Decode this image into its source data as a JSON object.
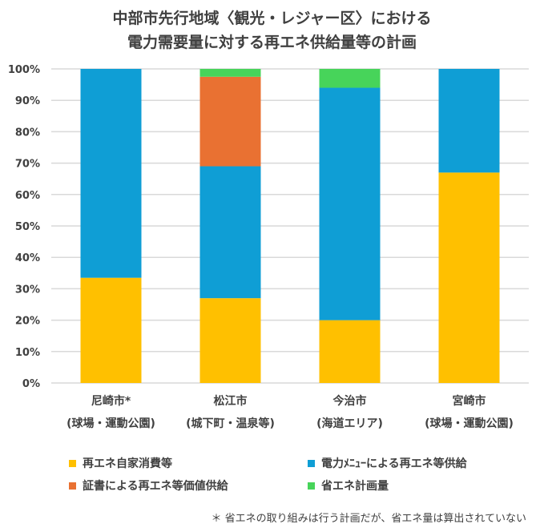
{
  "chart_data": {
    "type": "bar",
    "stacked": true,
    "title_lines": [
      "中部市先行地域〈観光・レジャー区〉における",
      "電力需要量に対する再エネ供給量等の計画"
    ],
    "categories": [
      [
        "尼崎市*",
        "(球場・運動公園)"
      ],
      [
        "松江市",
        "(城下町・温泉等)"
      ],
      [
        "今治市",
        "(海道エリア)"
      ],
      [
        "宮崎市",
        "(球場・運動公園)"
      ]
    ],
    "ylim": [
      0,
      100
    ],
    "yticks": [
      "0%",
      "10%",
      "20%",
      "30%",
      "40%",
      "50%",
      "60%",
      "70%",
      "80%",
      "90%",
      "100%"
    ],
    "grid": true,
    "legend_position": "bottom",
    "series": [
      {
        "name": "再エネ自家消費等",
        "color": "#FFC000",
        "values": [
          33.5,
          27,
          20,
          67
        ]
      },
      {
        "name": "電力ﾒﾆｭｰによる再エネ等供給",
        "color": "#0F9ED5",
        "values": [
          66.5,
          42,
          74,
          33
        ]
      },
      {
        "name": "証書による再エネ等価値供給",
        "color": "#E97132",
        "values": [
          0,
          28.5,
          0,
          0
        ]
      },
      {
        "name": "省エネ計画量",
        "color": "#47D45A",
        "values": [
          0,
          2.5,
          6,
          0
        ]
      }
    ],
    "footnote": "＊ 省エネの取り組みは行う計画だが、省エネ量は算出されていない"
  }
}
